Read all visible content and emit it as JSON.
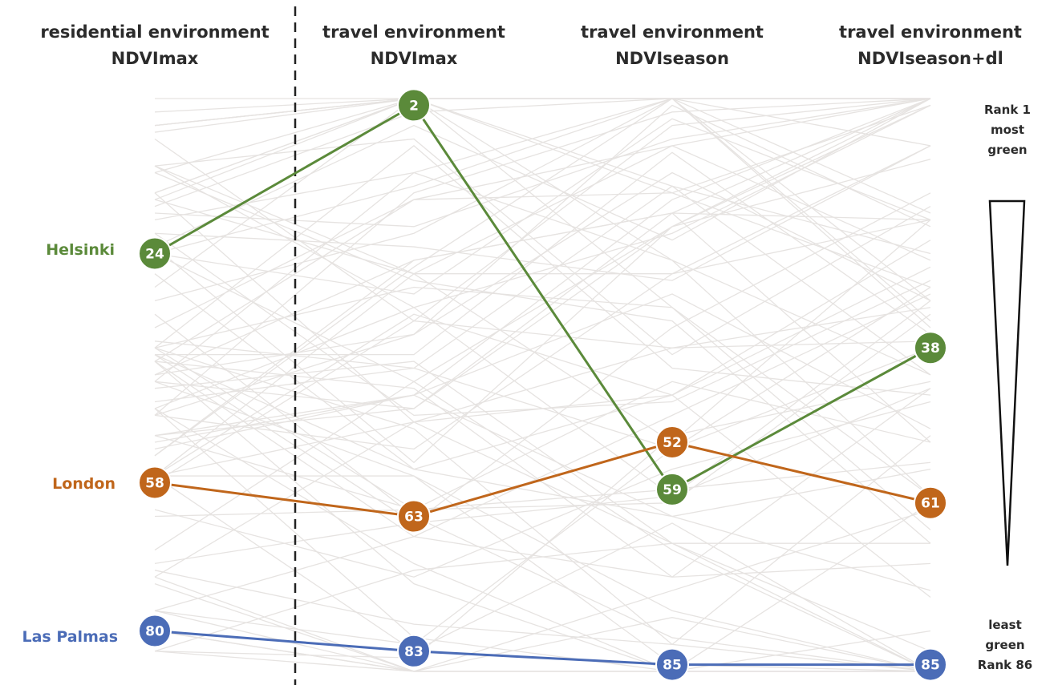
{
  "chart_data": {
    "type": "line",
    "title": "",
    "axes": [
      {
        "line1": "residential environment",
        "line2": "NDVImax"
      },
      {
        "line1": "travel environment",
        "line2": "NDVImax"
      },
      {
        "line1": "travel environment",
        "line2": "NDVIseason"
      },
      {
        "line1": "travel environment",
        "line2": "NDVIseason+dl"
      }
    ],
    "rank_range": [
      1,
      86
    ],
    "series": [
      {
        "name": "Helsinki",
        "color": "#5b8a3a",
        "values": [
          24,
          2,
          59,
          38
        ]
      },
      {
        "name": "London",
        "color": "#c0661b",
        "values": [
          58,
          63,
          52,
          61
        ]
      },
      {
        "name": "Las Palmas",
        "color": "#4b6cb7",
        "values": [
          80,
          83,
          85,
          85
        ]
      }
    ],
    "background_lines_color": "#e6e3e1",
    "divider_style": "dashed",
    "legend": {
      "top_lines": [
        "Rank 1",
        "most",
        "green"
      ],
      "bottom_lines": [
        "least",
        "green",
        "Rank 86"
      ]
    }
  }
}
